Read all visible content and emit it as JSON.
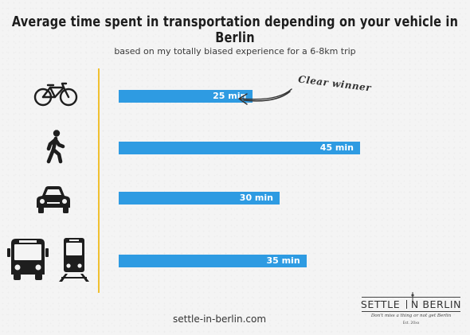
{
  "title": "Average time spent in transportation depending on your vehicle in Berlin",
  "subtitle": "based on my totally biased experience for a 6-8km trip",
  "footer_url": "settle-in-berlin.com",
  "annotation": "Clear winner",
  "logo": {
    "name_left": "Settle",
    "name_right": "n Berlin",
    "tagline": "Don't miss a thing or not get Berlin",
    "est": "Est. 20xx"
  },
  "colors": {
    "bar": "#2e9be2",
    "axis": "#f0c030",
    "background": "#f4f4f4"
  },
  "chart_data": {
    "type": "bar",
    "orientation": "horizontal",
    "categories": [
      "bicycle-icon",
      "walking-icon",
      "car-icon",
      "bus-and-tram-icon"
    ],
    "values": [
      25,
      45,
      30,
      35
    ],
    "value_labels": [
      "25 min",
      "45 min",
      "30 min",
      "35 min"
    ],
    "unit": "min",
    "xlim": [
      0,
      45
    ],
    "grid": false,
    "legend": "none"
  }
}
